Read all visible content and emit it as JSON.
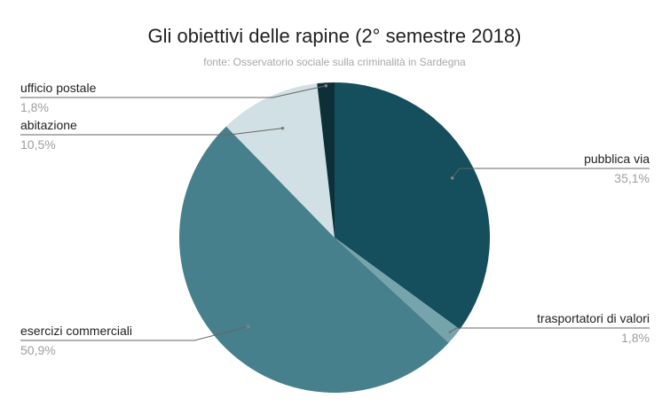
{
  "chart_data": {
    "type": "pie",
    "title": "Gli  obiettivi delle rapine (2° semestre 2018)",
    "subtitle": "fonte: Osservatorio sociale sulla criminalità in Sardegna",
    "slices": [
      {
        "label": "pubblica via",
        "value": 35.1,
        "value_label": "35,1%",
        "color": "#154e5c"
      },
      {
        "label": "trasportatori di valori",
        "value": 1.8,
        "value_label": "1,8%",
        "color": "#76a4ac"
      },
      {
        "label": "esercizi commerciali",
        "value": 50.9,
        "value_label": "50,9%",
        "color": "#47808d"
      },
      {
        "label": "abitazione",
        "value": 10.5,
        "value_label": "10,5%",
        "color": "#d1e0e4"
      },
      {
        "label": "ufficio postale",
        "value": 1.8,
        "value_label": "1,8%",
        "color": "#0c2f38"
      }
    ]
  }
}
